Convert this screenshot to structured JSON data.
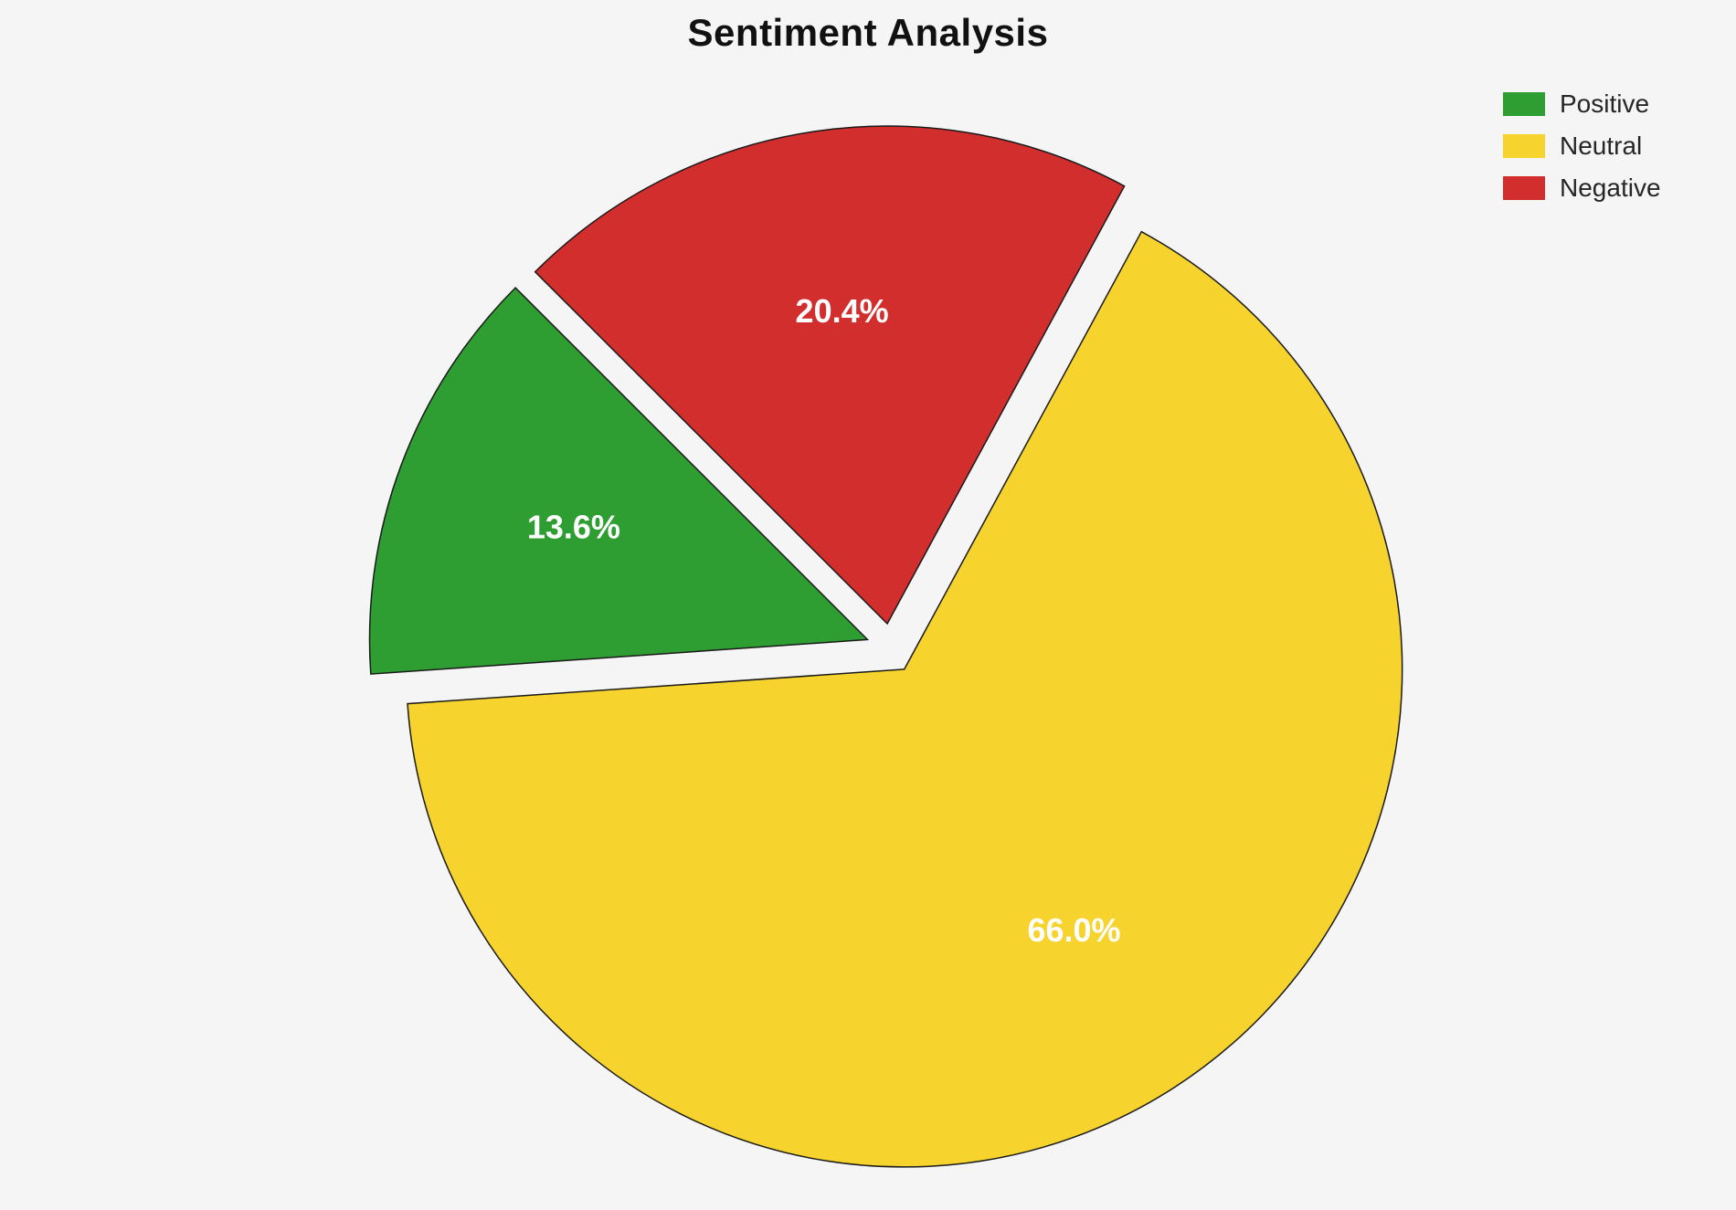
{
  "chart_data": {
    "type": "pie",
    "title": "Sentiment Analysis",
    "labels": [
      "Positive",
      "Neutral",
      "Negative"
    ],
    "values": [
      13.6,
      66.0,
      20.4
    ],
    "pct_labels": [
      "13.6%",
      "66.0%",
      "20.4%"
    ],
    "colors": [
      "#2E9E32",
      "#F6D32D",
      "#D32E2E"
    ],
    "stroke_color": "#1a1a1a",
    "background_color": "#f5f5f5",
    "legend_position": "top-right",
    "start_angle": 135,
    "direction": "counterclockwise",
    "explode": 0.05,
    "label_radius": 0.63,
    "center": [
      975,
      710
    ],
    "radius": 545
  },
  "legend": {
    "items": [
      {
        "label": "Positive"
      },
      {
        "label": "Neutral"
      },
      {
        "label": "Negative"
      }
    ]
  }
}
